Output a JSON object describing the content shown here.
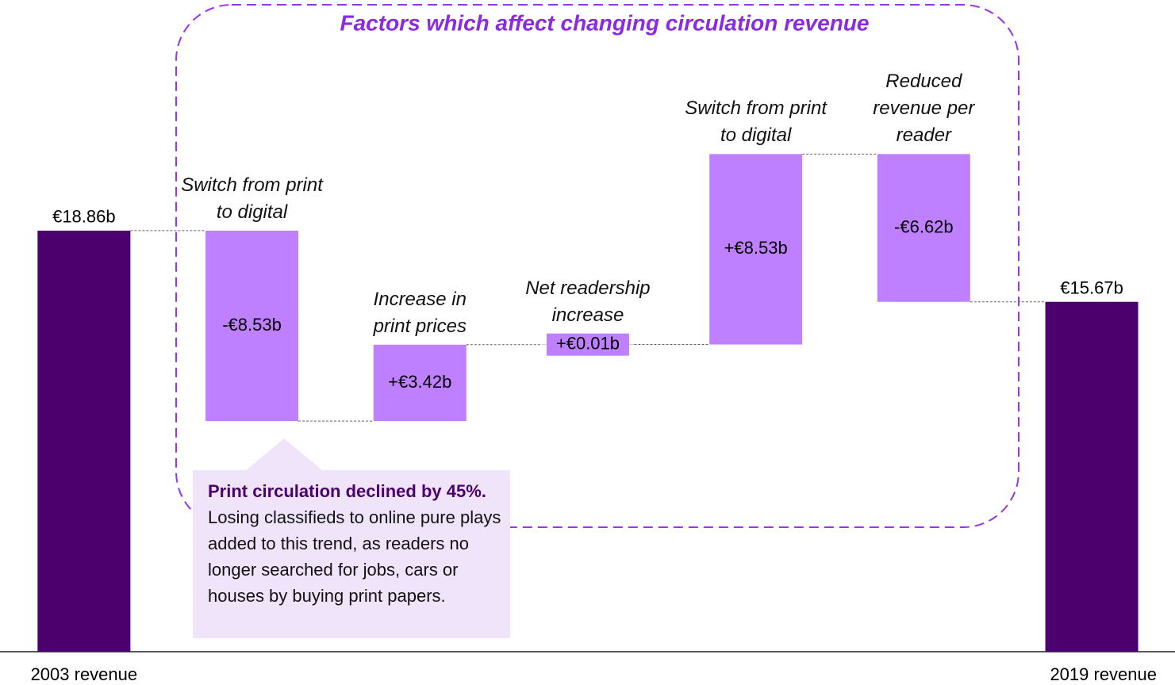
{
  "chart_data": {
    "type": "waterfall",
    "group_label": "Factors which affect changing circulation revenue",
    "categories": [
      "2003 revenue",
      "Switch from print to digital",
      "Increase in print prices",
      "Net readership increase",
      "Switch from print to digital",
      "Reduced revenue per reader",
      "2019 revenue"
    ],
    "values": [
      18.86,
      -8.53,
      3.42,
      0.01,
      8.53,
      -6.62,
      15.67
    ],
    "value_labels": [
      "€18.86b",
      "-€8.53b",
      "+€3.42b",
      "+€0.01b",
      "+€8.53b",
      "-€6.62b",
      "€15.67b"
    ],
    "total_color": "#4b006e",
    "change_color": "#bf80ff",
    "ylim": [
      0,
      25
    ],
    "annotation": {
      "bold": "Print circulation declined by 45%.",
      "text": "Losing classifieds to online pure plays added to this trend, as readers no longer searched for jobs, cars or houses by buying print papers."
    }
  }
}
